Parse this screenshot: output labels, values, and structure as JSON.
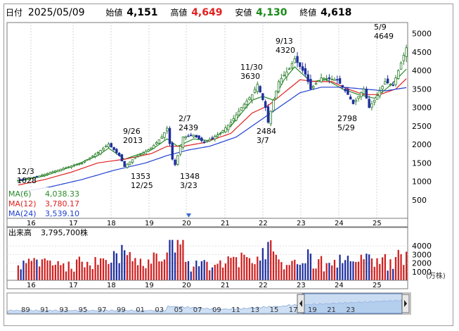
{
  "header": {
    "date_label": "日付",
    "date": "2025/05/09",
    "open_label": "始値",
    "open": "4,151",
    "high_label": "高値",
    "high": "4,649",
    "low_label": "安値",
    "low": "4,130",
    "close_label": "終値",
    "close": "4,618"
  },
  "colors": {
    "up": "#2a7d2a",
    "down": "#1f2f9e",
    "ma6": "#2a8a2a",
    "ma12": "#e02020",
    "ma24": "#2040d0",
    "high": "#e02020",
    "low": "#1a8a1a",
    "vol_up": "#d02020",
    "vol_down": "#1f2f9e",
    "navigator_fill": "#cfe0f5",
    "navigator_highlight": "#9fbfe8"
  },
  "legend": {
    "ma6": "MA(6)",
    "ma6_value": "4,038.33",
    "ma12": "MA(12)",
    "ma12_value": "3,780.17",
    "ma24": "MA(24)",
    "ma24_value": "3,539.10"
  },
  "volume_panel": {
    "label": "出来高",
    "value": "3,795,700株",
    "unit": "(万株)"
  },
  "chart_data": {
    "type": "candlestick",
    "price_axis": {
      "ylim": [
        0,
        5300
      ],
      "ticks": [
        500,
        1000,
        1500,
        2000,
        2500,
        3000,
        3500,
        4000,
        4500,
        5000
      ]
    },
    "volume_axis": {
      "ylim": [
        0,
        5000
      ],
      "ticks": [
        1000,
        2000,
        3000,
        4000
      ]
    },
    "x_ticks": [
      "16",
      "17",
      "18",
      "19",
      "20",
      "21",
      "22",
      "23",
      "24",
      "25"
    ],
    "annotations": [
      {
        "label": "12/3",
        "value": "1028"
      },
      {
        "label": "9/26",
        "value": "2013"
      },
      {
        "label": "1353",
        "value": "12/25"
      },
      {
        "label": "2/7",
        "value": "2439"
      },
      {
        "label": "1348",
        "value": "3/23"
      },
      {
        "label": "11/30",
        "value": "3630"
      },
      {
        "label": "2484",
        "value": "3/7"
      },
      {
        "label": "9/13",
        "value": "4320"
      },
      {
        "label": "2798",
        "value": "5/29"
      },
      {
        "label": "5/9",
        "value": "4649"
      }
    ],
    "close_path": [
      [
        0,
        1028
      ],
      [
        8,
        1150
      ],
      [
        16,
        1330
      ],
      [
        24,
        1500
      ],
      [
        30,
        1780
      ],
      [
        34,
        2013
      ],
      [
        38,
        1700
      ],
      [
        40,
        1400
      ],
      [
        44,
        1650
      ],
      [
        50,
        1900
      ],
      [
        54,
        2200
      ],
      [
        56,
        2439
      ],
      [
        58,
        1600
      ],
      [
        59,
        1450
      ],
      [
        62,
        2200
      ],
      [
        66,
        2250
      ],
      [
        70,
        2050
      ],
      [
        76,
        2300
      ],
      [
        80,
        2600
      ],
      [
        84,
        3000
      ],
      [
        88,
        3350
      ],
      [
        90,
        3630
      ],
      [
        93,
        3000
      ],
      [
        94,
        2600
      ],
      [
        96,
        3200
      ],
      [
        98,
        3700
      ],
      [
        102,
        4050
      ],
      [
        104,
        4320
      ],
      [
        108,
        3900
      ],
      [
        110,
        3500
      ],
      [
        114,
        3800
      ],
      [
        120,
        3750
      ],
      [
        124,
        3350
      ],
      [
        126,
        3100
      ],
      [
        130,
        3500
      ],
      [
        132,
        3000
      ],
      [
        134,
        3200
      ],
      [
        138,
        3700
      ],
      [
        141,
        3600
      ],
      [
        143,
        4000
      ],
      [
        146,
        4618
      ]
    ],
    "ma6_path": [
      [
        0,
        1000
      ],
      [
        10,
        1150
      ],
      [
        20,
        1400
      ],
      [
        30,
        1700
      ],
      [
        34,
        1900
      ],
      [
        40,
        1600
      ],
      [
        50,
        1850
      ],
      [
        56,
        2150
      ],
      [
        60,
        1950
      ],
      [
        66,
        2150
      ],
      [
        72,
        2100
      ],
      [
        80,
        2500
      ],
      [
        88,
        3200
      ],
      [
        92,
        3300
      ],
      [
        96,
        3200
      ],
      [
        100,
        3750
      ],
      [
        104,
        4100
      ],
      [
        110,
        3700
      ],
      [
        116,
        3750
      ],
      [
        122,
        3500
      ],
      [
        128,
        3350
      ],
      [
        134,
        3250
      ],
      [
        140,
        3600
      ],
      [
        146,
        4038
      ]
    ],
    "ma12_path": [
      [
        0,
        900
      ],
      [
        10,
        1050
      ],
      [
        20,
        1250
      ],
      [
        30,
        1500
      ],
      [
        40,
        1600
      ],
      [
        50,
        1750
      ],
      [
        56,
        1950
      ],
      [
        62,
        1950
      ],
      [
        70,
        2050
      ],
      [
        80,
        2300
      ],
      [
        88,
        2850
      ],
      [
        94,
        3050
      ],
      [
        100,
        3400
      ],
      [
        106,
        3750
      ],
      [
        112,
        3700
      ],
      [
        118,
        3700
      ],
      [
        124,
        3500
      ],
      [
        130,
        3350
      ],
      [
        136,
        3350
      ],
      [
        142,
        3500
      ],
      [
        146,
        3780
      ]
    ],
    "ma24_path": [
      [
        0,
        700
      ],
      [
        12,
        850
      ],
      [
        24,
        1050
      ],
      [
        36,
        1300
      ],
      [
        48,
        1500
      ],
      [
        56,
        1700
      ],
      [
        64,
        1850
      ],
      [
        72,
        1950
      ],
      [
        82,
        2200
      ],
      [
        90,
        2600
      ],
      [
        98,
        3000
      ],
      [
        106,
        3400
      ],
      [
        114,
        3550
      ],
      [
        122,
        3550
      ],
      [
        130,
        3500
      ],
      [
        138,
        3450
      ],
      [
        146,
        3539
      ]
    ]
  },
  "navigator": {
    "labels": [
      "89",
      "91",
      "93",
      "95",
      "97",
      "99",
      "01",
      "03",
      "05",
      "07",
      "09",
      "11",
      "13",
      "15",
      "17",
      "19",
      "21",
      "23"
    ],
    "left_handle_icon": "arrow-left-icon",
    "right_handle_icon": "arrow-right-icon"
  }
}
